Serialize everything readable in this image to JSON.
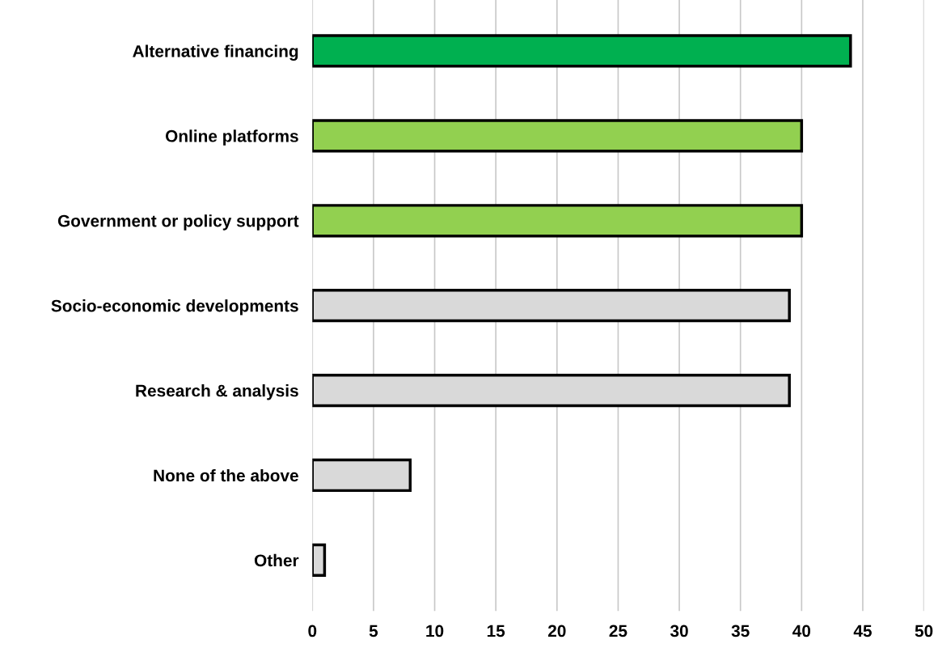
{
  "chart_data": {
    "type": "bar",
    "orientation": "horizontal",
    "categories": [
      "Alternative financing",
      "Online platforms",
      "Government or policy support",
      "Socio-economic developments",
      "Research & analysis",
      "None of the above",
      "Other"
    ],
    "values": [
      44,
      40,
      40,
      39,
      39,
      8,
      1
    ],
    "colors": [
      "#00b050",
      "#92d050",
      "#92d050",
      "#d9d9d9",
      "#d9d9d9",
      "#d9d9d9",
      "#d9d9d9"
    ],
    "xlim": [
      0,
      50
    ],
    "xticks": [
      0,
      5,
      10,
      15,
      20,
      25,
      30,
      35,
      40,
      45,
      50
    ],
    "grid": "x"
  }
}
